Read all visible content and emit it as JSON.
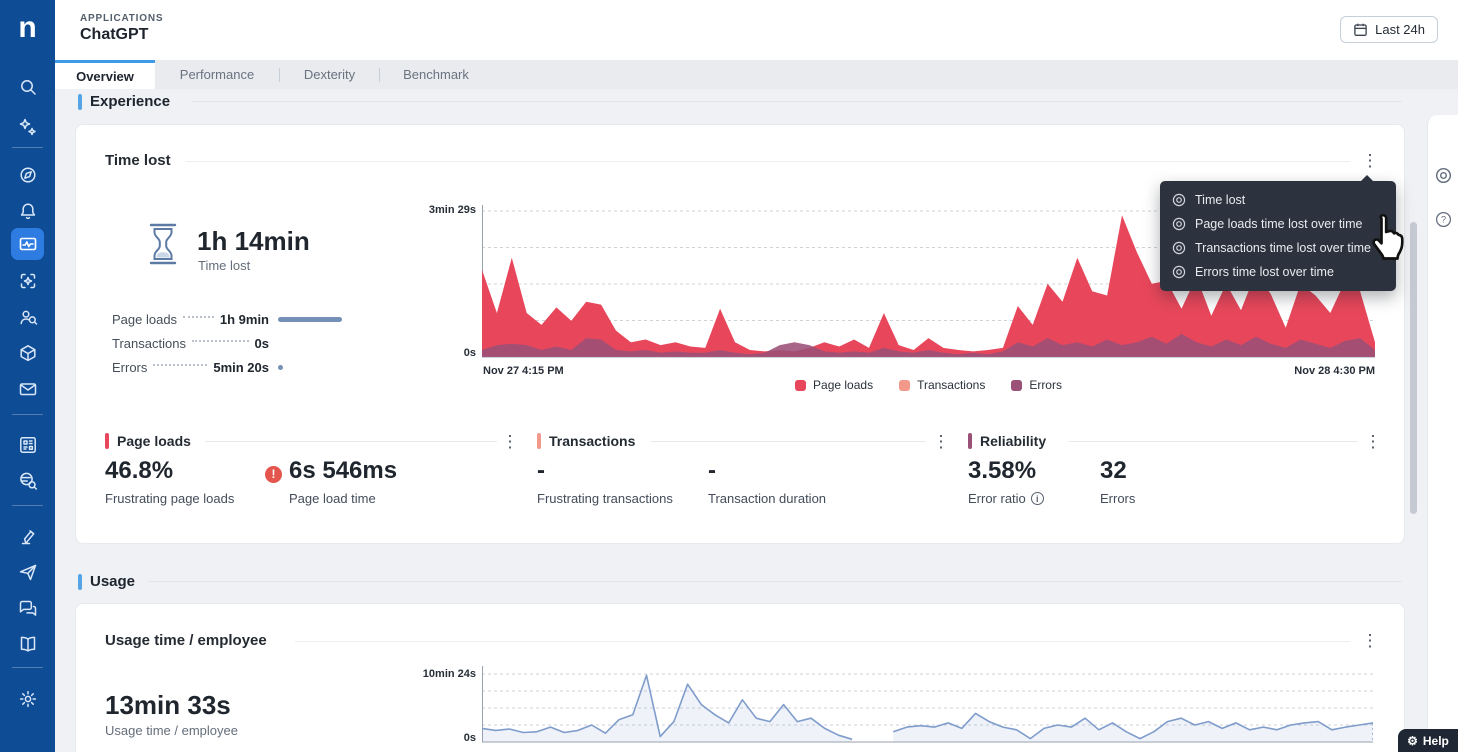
{
  "theme": {
    "sidebar_blue": "#0e4c96",
    "active_nav_blue": "#2e7ce1",
    "tab_accent_blue": "#3d9be9",
    "section_accent_blue": "#56a4e8",
    "breakdown_bar_blue": "#7490b8",
    "menu_bg": "#2c333f",
    "help_bg": "#1e2733"
  },
  "icons": {
    "kebab": "⋮",
    "gear_glyph": "⚙",
    "warning_glyph": "!",
    "info_glyph": "i",
    "question_glyph": "?"
  },
  "brand": {
    "logo_letter": "n"
  },
  "header": {
    "eyebrow": "APPLICATIONS",
    "title": "ChatGPT",
    "time_range_button": "Last 24h"
  },
  "tabs": [
    {
      "label": "Overview",
      "active": true
    },
    {
      "label": "Performance",
      "active": false
    },
    {
      "label": "Dexterity",
      "active": false
    },
    {
      "label": "Benchmark",
      "active": false
    }
  ],
  "sections": {
    "experience": "Experience",
    "usage": "Usage"
  },
  "time_lost_card": {
    "title": "Time lost",
    "summary": {
      "value": "1h 14min",
      "label": "Time lost"
    },
    "breakdown": [
      {
        "label": "Page loads",
        "value": "1h 9min"
      },
      {
        "label": "Transactions",
        "value": "0s"
      },
      {
        "label": "Errors",
        "value": "5min 20s"
      }
    ],
    "menu": {
      "items": [
        "Time lost",
        "Page loads time lost over time",
        "Transactions time lost over time",
        "Errors time lost over time"
      ]
    }
  },
  "kpi": [
    {
      "title": "Page loads",
      "accent": "#e8475b",
      "stats": [
        {
          "value": "46.8%",
          "label": "Frustrating page loads"
        },
        {
          "value": "6s 546ms",
          "label": "Page load time",
          "alert": true
        }
      ]
    },
    {
      "title": "Transactions",
      "accent": "#f2998c",
      "stats": [
        {
          "value": "-",
          "label": "Frustrating transactions"
        },
        {
          "value": "-",
          "label": "Transaction duration"
        }
      ]
    },
    {
      "title": "Reliability",
      "accent": "#9b5077",
      "stats": [
        {
          "value": "3.58%",
          "label": "Error ratio",
          "info": true
        },
        {
          "value": "32",
          "label": "Errors"
        }
      ]
    }
  ],
  "usage_card": {
    "title": "Usage time / employee",
    "summary": {
      "value": "13min 33s",
      "label": "Usage time / employee"
    }
  },
  "help": {
    "label": "Help"
  },
  "chart_data": [
    {
      "type": "area",
      "title": "Time lost over time",
      "unit": "seconds",
      "ymax_seconds": 209,
      "ytick_labels": [
        "0s",
        "3min 29s"
      ],
      "x_start_label": "Nov 27 4:15 PM",
      "x_end_label": "Nov 28 4:30 PM",
      "grid": "dashed-horizontal",
      "legend_position": "bottom-center",
      "series": [
        {
          "name": "Page loads",
          "color": "#e8475b",
          "opacity": 1,
          "values": [
            125,
            63,
            142,
            63,
            46,
            71,
            52,
            79,
            75,
            38,
            21,
            25,
            17,
            21,
            15,
            13,
            69,
            21,
            10,
            8,
            10,
            8,
            13,
            21,
            15,
            25,
            13,
            63,
            17,
            10,
            27,
            13,
            10,
            8,
            10,
            13,
            73,
            46,
            105,
            79,
            142,
            94,
            88,
            203,
            150,
            105,
            109,
            69,
            115,
            59,
            105,
            67,
            121,
            90,
            42,
            105,
            88,
            63,
            109,
            94,
            21
          ]
        },
        {
          "name": "Transactions",
          "color": "#f2998c",
          "opacity": 1,
          "values": [
            1,
            1,
            1,
            1,
            1,
            1,
            1,
            1,
            1,
            1,
            1,
            1,
            1,
            1,
            1,
            1,
            1,
            1,
            1,
            1,
            1,
            1,
            1,
            1,
            1,
            1,
            1,
            1,
            1,
            1,
            1,
            1,
            1,
            1,
            1,
            1,
            1,
            1,
            1,
            1,
            1,
            1,
            1,
            1,
            1,
            1,
            1,
            1,
            1,
            1,
            1,
            1,
            1,
            1,
            1,
            1,
            1,
            1,
            1,
            1,
            1
          ]
        },
        {
          "name": "Errors",
          "color": "#9b5077",
          "opacity": 0.88,
          "values": [
            10,
            17,
            19,
            17,
            10,
            15,
            10,
            27,
            25,
            10,
            8,
            10,
            6,
            8,
            6,
            6,
            10,
            6,
            4,
            6,
            17,
            21,
            17,
            8,
            6,
            8,
            6,
            13,
            8,
            6,
            10,
            6,
            4,
            6,
            4,
            8,
            21,
            15,
            27,
            17,
            21,
            15,
            25,
            17,
            21,
            29,
            19,
            33,
            21,
            15,
            25,
            17,
            29,
            19,
            13,
            25,
            19,
            13,
            23,
            27,
            10
          ]
        }
      ]
    },
    {
      "type": "line",
      "title": "Usage time / employee over time",
      "unit": "seconds",
      "ymax_seconds": 624,
      "ytick_labels": [
        "0s",
        "10min 24s"
      ],
      "grid": "dashed-horizontal",
      "color": "#7f9ccb",
      "values": [
        125,
        106,
        119,
        87,
        94,
        137,
        87,
        106,
        156,
        81,
        206,
        250,
        612,
        50,
        187,
        530,
        343,
        250,
        175,
        387,
        218,
        187,
        343,
        187,
        218,
        125,
        62,
        25,
        null,
        null,
        94,
        137,
        150,
        137,
        175,
        125,
        262,
        187,
        137,
        112,
        31,
        125,
        156,
        137,
        218,
        112,
        175,
        94,
        31,
        94,
        187,
        218,
        156,
        187,
        125,
        175,
        112,
        137,
        112,
        156,
        175,
        187,
        112,
        137,
        156,
        175
      ]
    }
  ]
}
